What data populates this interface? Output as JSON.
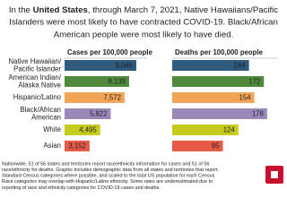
{
  "chart_data": {
    "type": "bar",
    "title": [
      "In the ",
      "United States",
      ", through March 7, 2021, Native Hawaiians/Pacific",
      "Islanders were most likely to have contracted COVID-19. Black/African",
      "American people were most likely to have died."
    ],
    "categories": [
      [
        "Native Hawaiian/",
        "Pacific Islander"
      ],
      [
        "American Indian/",
        "Alaska Native"
      ],
      [
        "Hispanic/Latino"
      ],
      [
        "Black/African",
        "American"
      ],
      [
        "White"
      ],
      [
        "Asian"
      ]
    ],
    "colors": [
      "#2e5b7d",
      "#4f8a3c",
      "#f2a457",
      "#9b88bb",
      "#c7cc1c",
      "#e85a48"
    ],
    "series": [
      {
        "name": "Cases per 100,000 people",
        "values": [
          9046,
          8139,
          7572,
          5822,
          4495,
          3152
        ],
        "value_labels": [
          "9,046",
          "8,139",
          "7,572",
          "5,822",
          "4,495",
          "3,152"
        ],
        "xlim": [
          0,
          9500
        ]
      },
      {
        "name": "Deaths per 100,000 people",
        "values": [
          144,
          172,
          154,
          178,
          124,
          95
        ],
        "value_labels": [
          "144",
          "172",
          "154",
          "178",
          "124",
          "95"
        ],
        "xlim": [
          0,
          185
        ]
      }
    ],
    "footnote": [
      "Nationwide, 51 of 56 states and territories report race/ethnicity information for cases and 51 of 56",
      "race/ethnicity for deaths. Graphic includes demographic data from all states and territories that report.",
      "Standard Census categories where possible, and scaled to the total US population for each Census",
      "Race categories may overlap with Hispanic/Latino ethnicity. Some rates are underestimated due to",
      "reporting of race and ethnicity categories for COVID-19 cases and deaths."
    ]
  }
}
